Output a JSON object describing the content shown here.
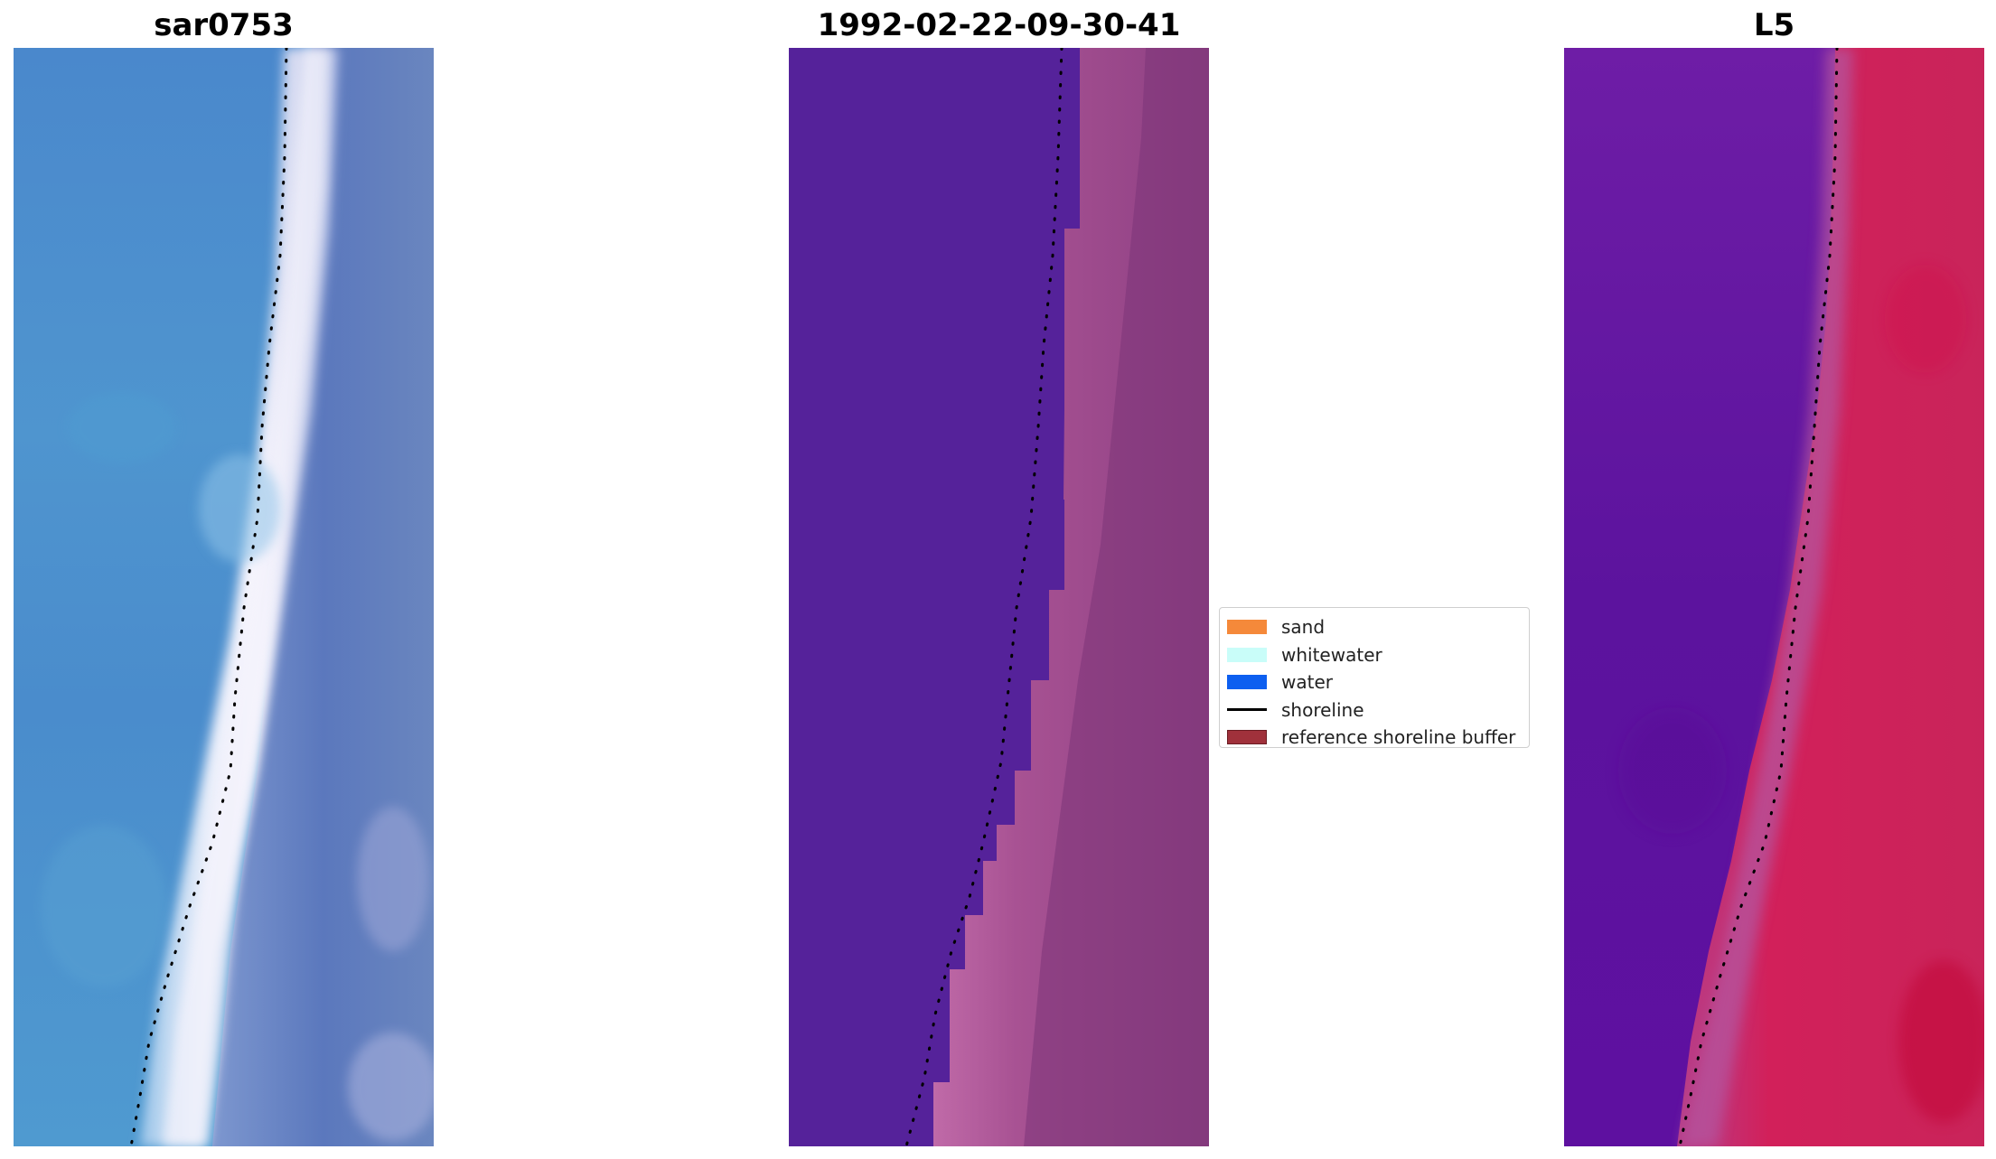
{
  "panels": [
    {
      "id": "rgb",
      "title": "sar0753"
    },
    {
      "id": "classification",
      "title": "1992-02-22-09-30-41"
    },
    {
      "id": "index",
      "title": "L5"
    }
  ],
  "legend": {
    "items": [
      {
        "label": "sand",
        "kind": "patch",
        "color": "#f5893a"
      },
      {
        "label": "whitewater",
        "kind": "patch",
        "color": "#c9fdf9"
      },
      {
        "label": "water",
        "kind": "patch",
        "color": "#0d5ff0"
      },
      {
        "label": "shoreline",
        "kind": "line",
        "color": "#000000"
      },
      {
        "label": "reference shoreline buffer",
        "kind": "patch",
        "color": "#a0313b",
        "edge": "#6b1c22"
      }
    ]
  },
  "colors": {
    "water_rgb": "#4a8ccf",
    "surf_white": "#eef0fa",
    "land_rgb": "#5b7cc0",
    "class_water": "#552197",
    "class_land": "#9b4b8c",
    "index_water": "#5f12a0",
    "index_land": "#c8204f",
    "shoreline": "#000000"
  }
}
